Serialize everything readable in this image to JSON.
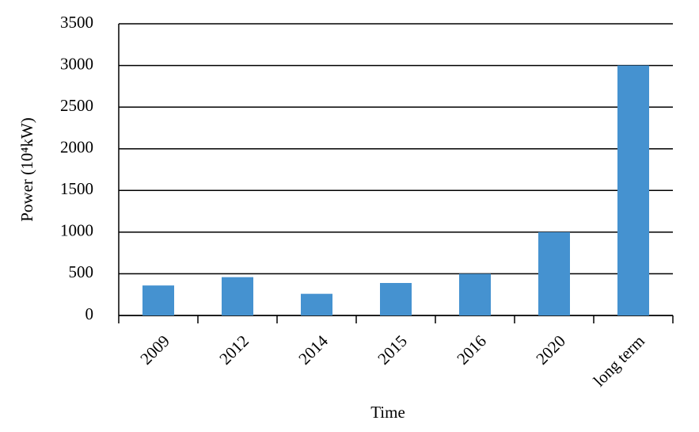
{
  "chart_data": {
    "type": "bar",
    "categories": [
      "2009",
      "2012",
      "2014",
      "2015",
      "2016",
      "2020",
      "long term"
    ],
    "values": [
      360,
      460,
      260,
      390,
      500,
      1000,
      3000
    ],
    "color": "#4592d0",
    "ylim": [
      0,
      3500
    ],
    "yticks": [
      0,
      500,
      1000,
      1500,
      2000,
      2500,
      3000,
      3500
    ],
    "grid": true,
    "x_label": "Time",
    "y_label": "Power (10⁴kW)"
  }
}
